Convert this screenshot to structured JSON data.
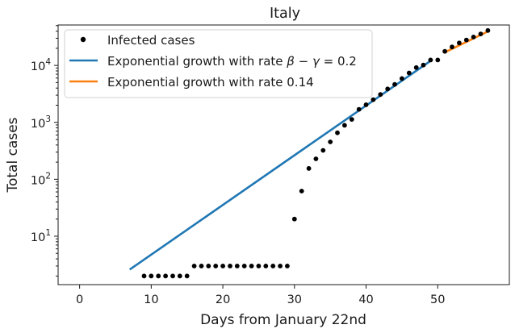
{
  "chart_data": {
    "type": "scatter",
    "title": "Italy",
    "xlabel": "Days from January 22nd",
    "ylabel": "Total cases",
    "xlim": [
      -3,
      60
    ],
    "ylim_log10": [
      0.15,
      4.71
    ],
    "yscale": "log",
    "grid": false,
    "legend_position": "top-left",
    "x_ticks": [
      0,
      10,
      20,
      30,
      40,
      50
    ],
    "y_ticks": [
      {
        "value": 10,
        "base": "10",
        "exp": "1"
      },
      {
        "value": 100,
        "base": "10",
        "exp": "2"
      },
      {
        "value": 1000,
        "base": "10",
        "exp": "3"
      },
      {
        "value": 10000,
        "base": "10",
        "exp": "4"
      }
    ],
    "series": [
      {
        "name": "Infected cases",
        "kind": "points",
        "color": "#000000",
        "x": [
          9,
          10,
          11,
          12,
          13,
          14,
          15,
          16,
          17,
          18,
          19,
          20,
          21,
          22,
          23,
          24,
          25,
          26,
          27,
          28,
          29,
          30,
          31,
          32,
          33,
          34,
          35,
          36,
          37,
          38,
          39,
          40,
          41,
          42,
          43,
          44,
          45,
          46,
          47,
          48,
          49,
          50,
          51,
          52,
          53,
          54,
          55,
          56,
          57
        ],
        "y": [
          2,
          2,
          2,
          2,
          2,
          2,
          2,
          3,
          3,
          3,
          3,
          3,
          3,
          3,
          3,
          3,
          3,
          3,
          3,
          3,
          3,
          20,
          62,
          155,
          229,
          322,
          453,
          655,
          888,
          1128,
          1694,
          2036,
          2502,
          3089,
          3858,
          4636,
          5883,
          7375,
          9172,
          10149,
          12462,
          12462,
          17660,
          21157,
          24747,
          27980,
          31506,
          35713,
          41035
        ]
      },
      {
        "name": "Exponential growth with rate β − γ = 0.2",
        "legend_parts": [
          "Exponential growth with rate ",
          "β",
          " − ",
          "γ",
          " = 0.2"
        ],
        "kind": "line",
        "color": "#1f77b4",
        "x": [
          7,
          49
        ],
        "y": [
          2.6,
          12000
        ]
      },
      {
        "name": "Exponential growth with rate 0.14",
        "kind": "line",
        "color": "#ff7f0e",
        "x": [
          51,
          57
        ],
        "y": [
          17000,
          39500
        ]
      }
    ]
  }
}
